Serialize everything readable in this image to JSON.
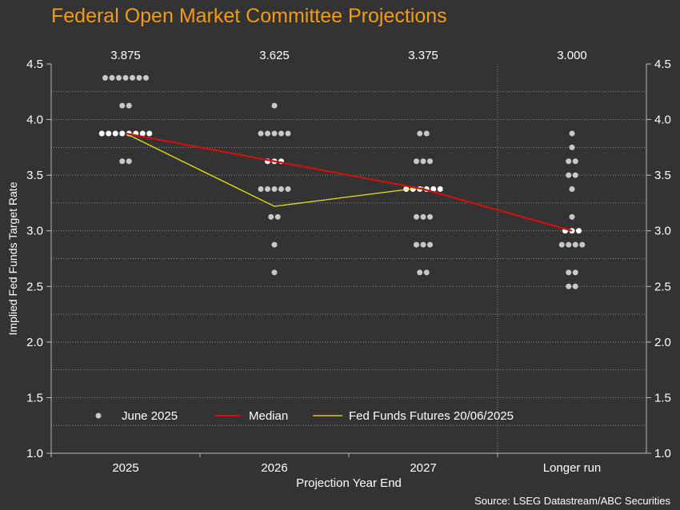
{
  "title": "Federal Open Market Committee Projections",
  "source": "Source: LSEG Datastream/ABC Securities",
  "colors": {
    "background": "#333333",
    "title": "#f39c12",
    "dots": "#c8c8c8",
    "median": "#cc1111",
    "futures": "#e8e020",
    "grid": "#8a8a8a",
    "text": "#ffffff"
  },
  "chart_data": {
    "type": "scatter",
    "xlabel": "Projection Year End",
    "ylabel": "Implied Fed Funds Target Rate",
    "categories": [
      "2025",
      "2026",
      "2027",
      "Longer run"
    ],
    "ylim": [
      1.0,
      4.5
    ],
    "yticks": [
      "1.0",
      "1.5",
      "2.0",
      "2.5",
      "3.0",
      "3.5",
      "4.0",
      "4.5"
    ],
    "ygrid_step": 0.25,
    "top_labels": [
      "3.875",
      "3.625",
      "3.375",
      "3.000"
    ],
    "legend_position": "bottom-left",
    "dots": {
      "name": "June 2025",
      "counts": [
        [
          [
            4.375,
            7
          ],
          [
            4.125,
            2
          ],
          [
            3.875,
            8
          ],
          [
            3.625,
            2
          ]
        ],
        [
          [
            4.125,
            1
          ],
          [
            3.875,
            5
          ],
          [
            3.625,
            3
          ],
          [
            3.375,
            5
          ],
          [
            3.125,
            2
          ],
          [
            2.875,
            1
          ],
          [
            2.625,
            1
          ]
        ],
        [
          [
            3.875,
            2
          ],
          [
            3.625,
            3
          ],
          [
            3.375,
            6
          ],
          [
            3.125,
            3
          ],
          [
            2.875,
            3
          ],
          [
            2.625,
            2
          ]
        ],
        [
          [
            3.875,
            1
          ],
          [
            3.75,
            1
          ],
          [
            3.625,
            2
          ],
          [
            3.5,
            2
          ],
          [
            3.375,
            1
          ],
          [
            3.125,
            1
          ],
          [
            3.0,
            3
          ],
          [
            2.875,
            4
          ],
          [
            2.625,
            2
          ],
          [
            2.5,
            2
          ]
        ]
      ]
    },
    "series": [
      {
        "name": "Median",
        "values": [
          3.875,
          3.625,
          3.375,
          3.0
        ]
      },
      {
        "name": "Fed Funds Futures 20/06/2025",
        "values": [
          3.875,
          3.22,
          3.39,
          null
        ]
      }
    ]
  }
}
